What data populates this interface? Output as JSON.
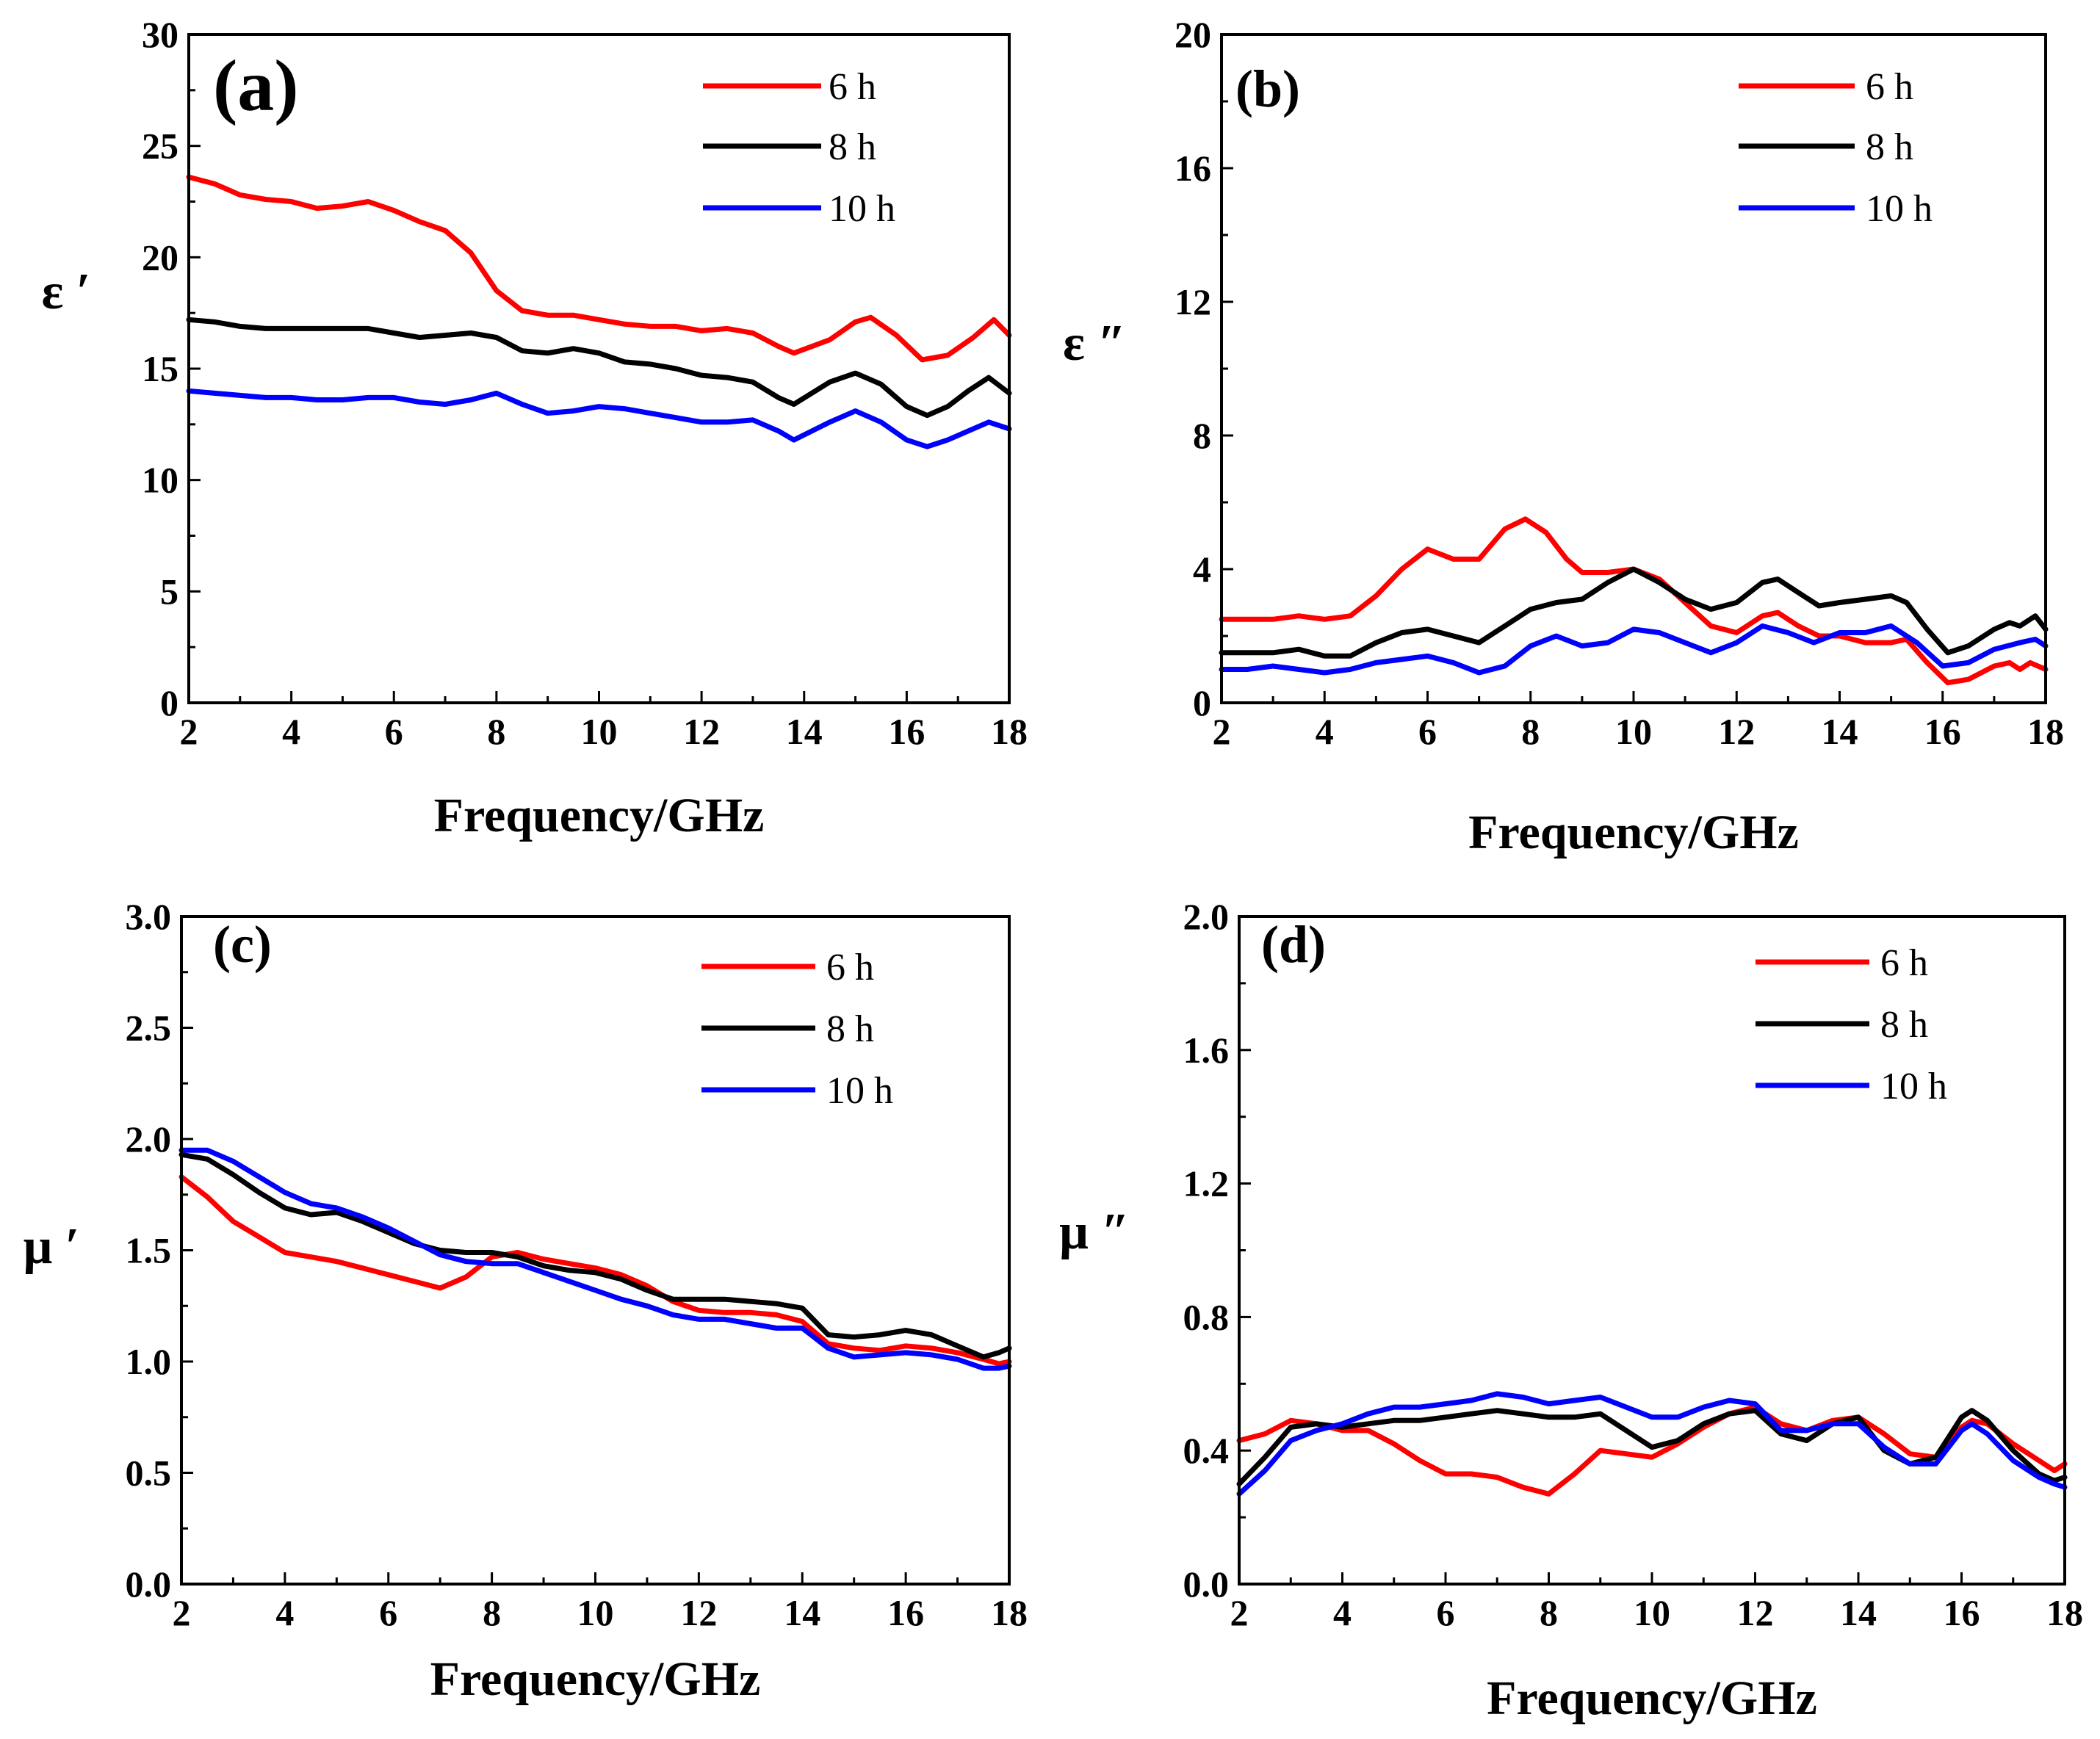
{
  "chart_data": [
    {
      "type": "line",
      "panel_label": "(a)",
      "xlabel": "Frequency/GHz",
      "ylabel": "ε ′",
      "xlim": [
        2,
        18
      ],
      "ylim": [
        0,
        30
      ],
      "xticks": [
        2,
        4,
        6,
        8,
        10,
        12,
        14,
        16,
        18
      ],
      "xtick_labels": [
        "2",
        "4",
        "6",
        "8",
        "10",
        "12",
        "14",
        "16",
        "18"
      ],
      "yticks": [
        0,
        5,
        10,
        15,
        20,
        25,
        30
      ],
      "ytick_labels": [
        "0",
        "5",
        "10",
        "15",
        "20",
        "25",
        "30"
      ],
      "legend_position": "top-right",
      "series": [
        {
          "name": "6 h",
          "color": "#ff0000",
          "x": [
            2,
            2.5,
            3,
            3.5,
            4,
            4.5,
            5,
            5.5,
            6,
            6.5,
            7,
            7.5,
            8,
            8.5,
            9,
            9.5,
            10,
            10.5,
            11,
            11.5,
            12,
            12.5,
            13,
            13.5,
            13.8,
            14.5,
            15,
            15.3,
            15.8,
            16.3,
            16.8,
            17.3,
            17.5,
            17.7,
            18
          ],
          "y": [
            23.6,
            23.3,
            22.8,
            22.6,
            22.5,
            22.2,
            22.3,
            22.5,
            22.1,
            21.6,
            21.2,
            20.2,
            18.5,
            17.6,
            17.4,
            17.4,
            17.2,
            17.0,
            16.9,
            16.9,
            16.7,
            16.8,
            16.6,
            16.0,
            15.7,
            16.3,
            17.1,
            17.3,
            16.5,
            15.4,
            15.6,
            16.4,
            16.8,
            17.2,
            16.5
          ]
        },
        {
          "name": "8 h",
          "color": "#000000",
          "x": [
            2,
            2.5,
            3,
            3.5,
            4,
            4.5,
            5,
            5.5,
            6,
            6.5,
            7,
            7.5,
            8,
            8.5,
            9,
            9.5,
            10,
            10.5,
            11,
            11.5,
            12,
            12.5,
            13,
            13.5,
            13.8,
            14.5,
            15,
            15.5,
            16,
            16.4,
            16.8,
            17.2,
            17.6,
            18
          ],
          "y": [
            17.2,
            17.1,
            16.9,
            16.8,
            16.8,
            16.8,
            16.8,
            16.8,
            16.6,
            16.4,
            16.5,
            16.6,
            16.4,
            15.8,
            15.7,
            15.9,
            15.7,
            15.3,
            15.2,
            15.0,
            14.7,
            14.6,
            14.4,
            13.7,
            13.4,
            14.4,
            14.8,
            14.3,
            13.3,
            12.9,
            13.3,
            14.0,
            14.6,
            13.9
          ]
        },
        {
          "name": "10 h",
          "color": "#0000ff",
          "x": [
            2,
            2.5,
            3,
            3.5,
            4,
            4.5,
            5,
            5.5,
            6,
            6.5,
            7,
            7.5,
            8,
            8.5,
            9,
            9.5,
            10,
            10.5,
            11,
            11.5,
            12,
            12.5,
            13,
            13.5,
            13.8,
            14.5,
            15,
            15.5,
            16,
            16.4,
            16.8,
            17.2,
            17.6,
            18
          ],
          "y": [
            14.0,
            13.9,
            13.8,
            13.7,
            13.7,
            13.6,
            13.6,
            13.7,
            13.7,
            13.5,
            13.4,
            13.6,
            13.9,
            13.4,
            13.0,
            13.1,
            13.3,
            13.2,
            13.0,
            12.8,
            12.6,
            12.6,
            12.7,
            12.2,
            11.8,
            12.6,
            13.1,
            12.6,
            11.8,
            11.5,
            11.8,
            12.2,
            12.6,
            12.3
          ]
        }
      ]
    },
    {
      "type": "line",
      "panel_label": "(b)",
      "xlabel": "Frequency/GHz",
      "ylabel": "ε ″",
      "xlim": [
        2,
        18
      ],
      "ylim": [
        0,
        20
      ],
      "xticks": [
        2,
        4,
        6,
        8,
        10,
        12,
        14,
        16,
        18
      ],
      "xtick_labels": [
        "2",
        "4",
        "6",
        "8",
        "10",
        "12",
        "14",
        "16",
        "18"
      ],
      "yticks": [
        0,
        4,
        8,
        12,
        16,
        20
      ],
      "ytick_labels": [
        "0",
        "4",
        "8",
        "12",
        "16",
        "20"
      ],
      "legend_position": "top-right",
      "series": [
        {
          "name": "6 h",
          "color": "#ff0000",
          "x": [
            2,
            2.5,
            3,
            3.5,
            4,
            4.5,
            5,
            5.5,
            6,
            6.5,
            7,
            7.5,
            7.9,
            8.3,
            8.7,
            9,
            9.5,
            10,
            10.5,
            11,
            11.5,
            12,
            12.5,
            12.8,
            13.2,
            13.6,
            14,
            14.5,
            15,
            15.3,
            15.7,
            16.1,
            16.5,
            17,
            17.3,
            17.5,
            17.7,
            18
          ],
          "y": [
            2.5,
            2.5,
            2.5,
            2.6,
            2.5,
            2.6,
            3.2,
            4.0,
            4.6,
            4.3,
            4.3,
            5.2,
            5.5,
            5.1,
            4.3,
            3.9,
            3.9,
            4.0,
            3.7,
            3.0,
            2.3,
            2.1,
            2.6,
            2.7,
            2.3,
            2.0,
            2.0,
            1.8,
            1.8,
            1.9,
            1.2,
            0.6,
            0.7,
            1.1,
            1.2,
            1.0,
            1.2,
            1.0
          ]
        },
        {
          "name": "8 h",
          "color": "#000000",
          "x": [
            2,
            2.5,
            3,
            3.5,
            4,
            4.5,
            5,
            5.5,
            6,
            6.5,
            7,
            7.5,
            8,
            8.5,
            9,
            9.5,
            10,
            10.5,
            11,
            11.5,
            12,
            12.5,
            12.8,
            13.2,
            13.6,
            14,
            14.5,
            15,
            15.3,
            15.7,
            16.1,
            16.5,
            17,
            17.3,
            17.5,
            17.8,
            18
          ],
          "y": [
            1.5,
            1.5,
            1.5,
            1.6,
            1.4,
            1.4,
            1.8,
            2.1,
            2.2,
            2.0,
            1.8,
            2.3,
            2.8,
            3.0,
            3.1,
            3.6,
            4.0,
            3.6,
            3.1,
            2.8,
            3.0,
            3.6,
            3.7,
            3.3,
            2.9,
            3.0,
            3.1,
            3.2,
            3.0,
            2.2,
            1.5,
            1.7,
            2.2,
            2.4,
            2.3,
            2.6,
            2.2
          ]
        },
        {
          "name": "10 h",
          "color": "#0000ff",
          "x": [
            2,
            2.5,
            3,
            3.5,
            4,
            4.5,
            5,
            5.5,
            6,
            6.5,
            7,
            7.5,
            8,
            8.5,
            9,
            9.5,
            10,
            10.5,
            11,
            11.5,
            12,
            12.5,
            13,
            13.5,
            14,
            14.5,
            15,
            15.5,
            16,
            16.5,
            17,
            17.5,
            17.8,
            18
          ],
          "y": [
            1.0,
            1.0,
            1.1,
            1.0,
            0.9,
            1.0,
            1.2,
            1.3,
            1.4,
            1.2,
            0.9,
            1.1,
            1.7,
            2.0,
            1.7,
            1.8,
            2.2,
            2.1,
            1.8,
            1.5,
            1.8,
            2.3,
            2.1,
            1.8,
            2.1,
            2.1,
            2.3,
            1.8,
            1.1,
            1.2,
            1.6,
            1.8,
            1.9,
            1.7
          ]
        }
      ]
    },
    {
      "type": "line",
      "panel_label": "(c)",
      "xlabel": "Frequency/GHz",
      "ylabel": "μ ′",
      "xlim": [
        2,
        18
      ],
      "ylim": [
        0,
        3
      ],
      "xticks": [
        2,
        4,
        6,
        8,
        10,
        12,
        14,
        16,
        18
      ],
      "xtick_labels": [
        "2",
        "4",
        "6",
        "8",
        "10",
        "12",
        "14",
        "16",
        "18"
      ],
      "yticks": [
        0,
        0.5,
        1,
        1.5,
        2,
        2.5,
        3
      ],
      "ytick_labels": [
        "0.0",
        "0.5",
        "1.0",
        "1.5",
        "2.0",
        "2.5",
        "3.0"
      ],
      "legend_position": "top-right",
      "series": [
        {
          "name": "6 h",
          "color": "#ff0000",
          "x": [
            2,
            2.5,
            3,
            3.5,
            4,
            4.5,
            5,
            5.5,
            6,
            6.5,
            7,
            7.5,
            8,
            8.5,
            9,
            9.5,
            10,
            10.5,
            11,
            11.5,
            12,
            12.5,
            13,
            13.5,
            14,
            14.5,
            15,
            15.5,
            16,
            16.5,
            17,
            17.5,
            17.8,
            18
          ],
          "y": [
            1.83,
            1.74,
            1.63,
            1.56,
            1.49,
            1.47,
            1.45,
            1.42,
            1.39,
            1.36,
            1.33,
            1.38,
            1.47,
            1.49,
            1.46,
            1.44,
            1.42,
            1.39,
            1.34,
            1.27,
            1.23,
            1.22,
            1.22,
            1.21,
            1.18,
            1.08,
            1.06,
            1.05,
            1.07,
            1.06,
            1.04,
            1.01,
            0.99,
            1.0
          ]
        },
        {
          "name": "8 h",
          "color": "#000000",
          "x": [
            2,
            2.5,
            3,
            3.5,
            4,
            4.5,
            5,
            5.5,
            6,
            6.5,
            7,
            7.5,
            8,
            8.5,
            9,
            9.5,
            10,
            10.5,
            11,
            11.5,
            12,
            12.5,
            13,
            13.5,
            14,
            14.5,
            15,
            15.5,
            16,
            16.5,
            17,
            17.5,
            17.8,
            18
          ],
          "y": [
            1.93,
            1.91,
            1.84,
            1.76,
            1.69,
            1.66,
            1.67,
            1.63,
            1.58,
            1.53,
            1.5,
            1.49,
            1.49,
            1.47,
            1.43,
            1.41,
            1.4,
            1.37,
            1.32,
            1.28,
            1.28,
            1.28,
            1.27,
            1.26,
            1.24,
            1.12,
            1.11,
            1.12,
            1.14,
            1.12,
            1.07,
            1.02,
            1.04,
            1.06
          ]
        },
        {
          "name": "10 h",
          "color": "#0000ff",
          "x": [
            2,
            2.5,
            3,
            3.5,
            4,
            4.5,
            5,
            5.5,
            6,
            6.5,
            7,
            7.5,
            8,
            8.5,
            9,
            9.5,
            10,
            10.5,
            11,
            11.5,
            12,
            12.5,
            13,
            13.5,
            14,
            14.5,
            15,
            15.5,
            16,
            16.5,
            17,
            17.5,
            17.8,
            18
          ],
          "y": [
            1.95,
            1.95,
            1.9,
            1.83,
            1.76,
            1.71,
            1.69,
            1.65,
            1.6,
            1.54,
            1.48,
            1.45,
            1.44,
            1.44,
            1.4,
            1.36,
            1.32,
            1.28,
            1.25,
            1.21,
            1.19,
            1.19,
            1.17,
            1.15,
            1.15,
            1.06,
            1.02,
            1.03,
            1.04,
            1.03,
            1.01,
            0.97,
            0.97,
            0.98
          ]
        }
      ]
    },
    {
      "type": "line",
      "panel_label": "(d)",
      "xlabel": "Frequency/GHz",
      "ylabel": "μ ″",
      "xlim": [
        2,
        18
      ],
      "ylim": [
        0,
        2
      ],
      "xticks": [
        2,
        4,
        6,
        8,
        10,
        12,
        14,
        16,
        18
      ],
      "xtick_labels": [
        "2",
        "4",
        "6",
        "8",
        "10",
        "12",
        "14",
        "16",
        "18"
      ],
      "yticks": [
        0,
        0.4,
        0.8,
        1.2,
        1.6,
        2.0
      ],
      "ytick_labels": [
        "0.0",
        "0.4",
        "0.8",
        "1.2",
        "1.6",
        "2.0"
      ],
      "legend_position": "top-right",
      "series": [
        {
          "name": "6 h",
          "color": "#ff0000",
          "x": [
            2,
            2.5,
            3,
            3.5,
            4,
            4.5,
            5,
            5.5,
            6,
            6.5,
            7,
            7.5,
            8,
            8.5,
            9,
            9.5,
            10,
            10.5,
            11,
            11.5,
            12,
            12.5,
            13,
            13.5,
            14,
            14.5,
            15,
            15.5,
            16,
            16.2,
            16.5,
            17,
            17.5,
            17.8,
            18
          ],
          "y": [
            0.43,
            0.45,
            0.49,
            0.48,
            0.46,
            0.46,
            0.42,
            0.37,
            0.33,
            0.33,
            0.32,
            0.29,
            0.27,
            0.33,
            0.4,
            0.39,
            0.38,
            0.42,
            0.47,
            0.51,
            0.53,
            0.48,
            0.46,
            0.49,
            0.5,
            0.45,
            0.39,
            0.38,
            0.47,
            0.49,
            0.48,
            0.42,
            0.37,
            0.34,
            0.36
          ]
        },
        {
          "name": "8 h",
          "color": "#000000",
          "x": [
            2,
            2.5,
            3,
            3.5,
            4,
            4.5,
            5,
            5.5,
            6,
            6.5,
            7,
            7.5,
            8,
            8.5,
            9,
            9.5,
            10,
            10.5,
            11,
            11.5,
            12,
            12.5,
            13,
            13.5,
            14,
            14.5,
            15,
            15.5,
            16,
            16.2,
            16.5,
            17,
            17.5,
            17.8,
            18
          ],
          "y": [
            0.3,
            0.38,
            0.47,
            0.48,
            0.47,
            0.48,
            0.49,
            0.49,
            0.5,
            0.51,
            0.52,
            0.51,
            0.5,
            0.5,
            0.51,
            0.46,
            0.41,
            0.43,
            0.48,
            0.51,
            0.52,
            0.45,
            0.43,
            0.48,
            0.5,
            0.4,
            0.36,
            0.38,
            0.5,
            0.52,
            0.49,
            0.4,
            0.33,
            0.31,
            0.32
          ]
        },
        {
          "name": "10 h",
          "color": "#0000ff",
          "x": [
            2,
            2.5,
            3,
            3.5,
            4,
            4.5,
            5,
            5.5,
            6,
            6.5,
            7,
            7.5,
            8,
            8.5,
            9,
            9.5,
            10,
            10.5,
            11,
            11.5,
            12,
            12.5,
            13,
            13.5,
            14,
            14.5,
            15,
            15.5,
            16,
            16.2,
            16.5,
            17,
            17.5,
            17.8,
            18
          ],
          "y": [
            0.27,
            0.34,
            0.43,
            0.46,
            0.48,
            0.51,
            0.53,
            0.53,
            0.54,
            0.55,
            0.57,
            0.56,
            0.54,
            0.55,
            0.56,
            0.53,
            0.5,
            0.5,
            0.53,
            0.55,
            0.54,
            0.46,
            0.46,
            0.48,
            0.48,
            0.41,
            0.36,
            0.36,
            0.46,
            0.48,
            0.45,
            0.37,
            0.32,
            0.3,
            0.29
          ]
        }
      ]
    }
  ]
}
